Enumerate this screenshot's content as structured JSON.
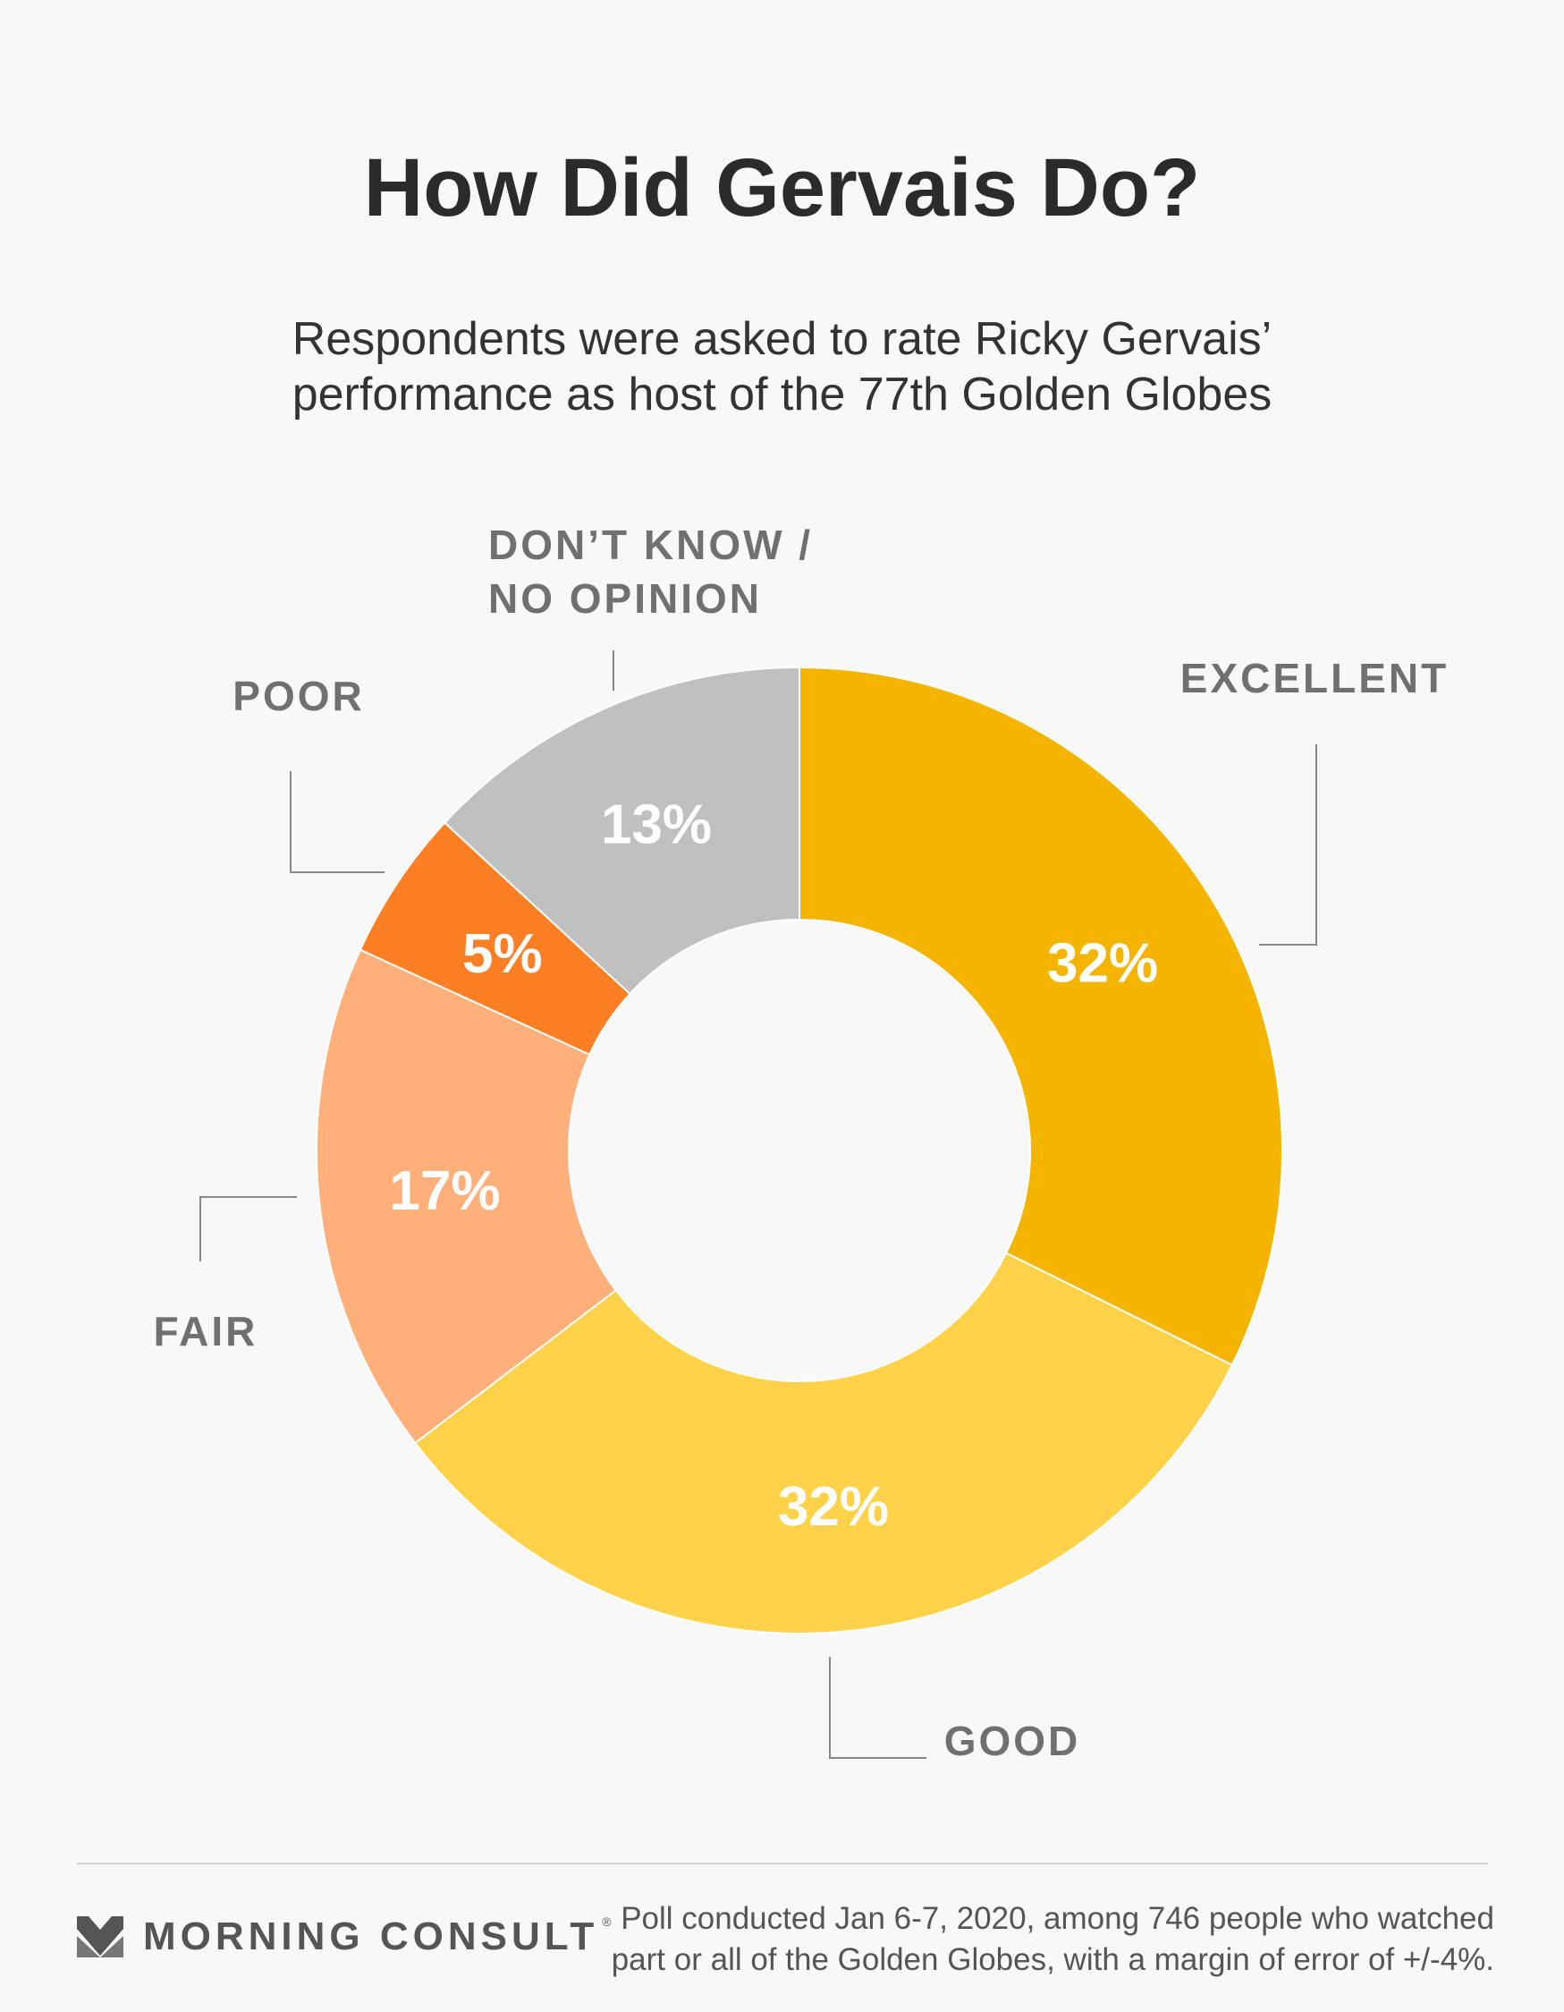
{
  "header": {
    "title": "How Did Gervais Do?",
    "subtitle_lines": [
      "Respondents were asked to rate Ricky Gervais’",
      "performance as host of the 77th Golden Globes"
    ]
  },
  "chart_data": {
    "type": "pie",
    "donut": true,
    "slices": [
      {
        "label": "EXCELLENT",
        "value": 32,
        "value_label": "32%",
        "color": "#f5b400"
      },
      {
        "label": "GOOD",
        "value": 32,
        "value_label": "32%",
        "color": "#ffd24a"
      },
      {
        "label": "FAIR",
        "value": 17,
        "value_label": "17%",
        "color": "#ffaf7a"
      },
      {
        "label": "POOR",
        "value": 5,
        "value_label": "5%",
        "color": "#fd7f23"
      },
      {
        "label_lines": [
          "DON’T KNOW /",
          "NO OPINION"
        ],
        "value": 13,
        "value_label": "13%",
        "color": "#c0c0c0"
      }
    ]
  },
  "footer": {
    "brand": "MORNING CONSULT",
    "brand_mark": "®",
    "note_lines": [
      "Poll conducted Jan 6-7, 2020, among 746 people who watched",
      "part or all of the Golden Globes, with a margin of error of +/-4%."
    ]
  }
}
